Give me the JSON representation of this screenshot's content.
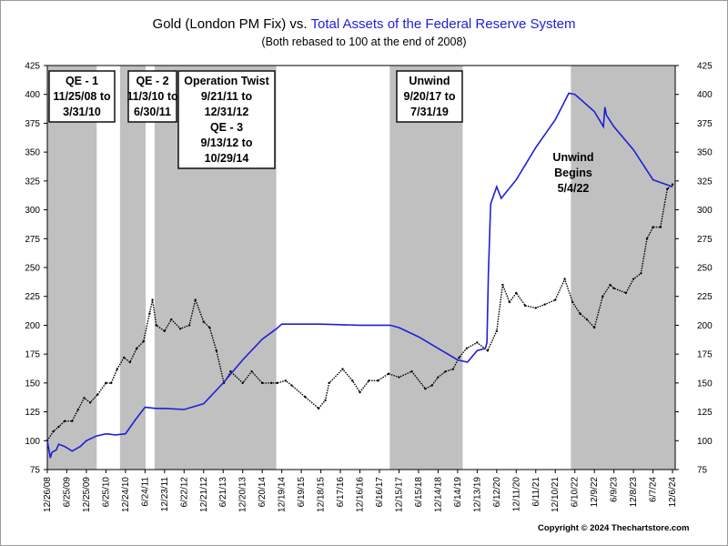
{
  "chart_data": {
    "type": "line",
    "title_part1": "Gold (London PM Fix) vs. ",
    "title_part2": "Total Assets of the Federal Reserve System",
    "subtitle": "(Both rebased to 100 at the end of 2008)",
    "xlabel": "",
    "ylabel": "",
    "ylim": [
      75,
      425
    ],
    "yticks": [
      75,
      100,
      125,
      150,
      175,
      200,
      225,
      250,
      275,
      300,
      325,
      350,
      375,
      400,
      425
    ],
    "xlim": [
      "2008-12-26",
      "2024-12-31"
    ],
    "xticks": [
      {
        "date": "2008-12-26",
        "label": "12/26/08"
      },
      {
        "date": "2009-06-25",
        "label": "6/25/09"
      },
      {
        "date": "2009-12-25",
        "label": "12/25/09"
      },
      {
        "date": "2010-06-25",
        "label": "6/25/10"
      },
      {
        "date": "2010-12-24",
        "label": "12/24/10"
      },
      {
        "date": "2011-06-24",
        "label": "6/24/11"
      },
      {
        "date": "2011-12-23",
        "label": "12/23/11"
      },
      {
        "date": "2012-06-22",
        "label": "6/22/12"
      },
      {
        "date": "2012-12-21",
        "label": "12/21/12"
      },
      {
        "date": "2013-06-21",
        "label": "6/21/13"
      },
      {
        "date": "2013-12-20",
        "label": "12/20/13"
      },
      {
        "date": "2014-06-20",
        "label": "6/20/14"
      },
      {
        "date": "2014-12-19",
        "label": "12/19/14"
      },
      {
        "date": "2015-06-19",
        "label": "6/19/15"
      },
      {
        "date": "2015-12-18",
        "label": "12/18/15"
      },
      {
        "date": "2016-06-17",
        "label": "6/17/16"
      },
      {
        "date": "2016-12-16",
        "label": "12/16/16"
      },
      {
        "date": "2017-06-16",
        "label": "6/16/17"
      },
      {
        "date": "2017-12-15",
        "label": "12/15/17"
      },
      {
        "date": "2018-06-15",
        "label": "6/15/18"
      },
      {
        "date": "2018-12-14",
        "label": "12/14/18"
      },
      {
        "date": "2019-06-14",
        "label": "6/14/19"
      },
      {
        "date": "2019-12-13",
        "label": "12/13/19"
      },
      {
        "date": "2020-06-12",
        "label": "6/12/20"
      },
      {
        "date": "2020-12-11",
        "label": "12/11/20"
      },
      {
        "date": "2021-06-11",
        "label": "6/11/21"
      },
      {
        "date": "2021-12-10",
        "label": "12/10/21"
      },
      {
        "date": "2022-06-10",
        "label": "6/10/22"
      },
      {
        "date": "2022-12-09",
        "label": "12/9/22"
      },
      {
        "date": "2023-06-09",
        "label": "6/9/23"
      },
      {
        "date": "2023-12-08",
        "label": "12/8/23"
      },
      {
        "date": "2024-06-07",
        "label": "6/7/24"
      },
      {
        "date": "2024-12-06",
        "label": "12/6/24"
      }
    ],
    "grid": false,
    "shaded_periods": [
      {
        "start": "2008-11-25",
        "end": "2010-03-31"
      },
      {
        "start": "2010-11-03",
        "end": "2011-06-30"
      },
      {
        "start": "2011-09-21",
        "end": "2014-10-29"
      },
      {
        "start": "2017-09-20",
        "end": "2019-07-31"
      },
      {
        "start": "2022-05-04",
        "end": "2024-12-31"
      }
    ],
    "annotations": [
      {
        "lines": [
          "QE - 1",
          "11/25/08 to",
          "3/31/10"
        ],
        "boxed": true
      },
      {
        "lines": [
          "QE - 2",
          "11/3/10 to",
          "6/30/11"
        ],
        "boxed": true
      },
      {
        "lines": [
          "Operation Twist",
          "9/21/11 to",
          "12/31/12",
          "QE - 3",
          "9/13/12 to",
          "10/29/14"
        ],
        "boxed": true
      },
      {
        "lines": [
          "Unwind",
          "9/20/17 to",
          "7/31/19"
        ],
        "boxed": true
      },
      {
        "lines": [
          "Unwind",
          "Begins",
          "5/4/22"
        ],
        "boxed": false
      }
    ],
    "series": [
      {
        "color": "#000000",
        "style": "dotted-line",
        "x": [
          "2008-12-26",
          "2009-02-20",
          "2009-04-10",
          "2009-06-05",
          "2009-08-14",
          "2009-10-09",
          "2009-12-04",
          "2010-01-29",
          "2010-04-09",
          "2010-06-25",
          "2010-08-13",
          "2010-10-08",
          "2010-12-10",
          "2011-02-04",
          "2011-04-08",
          "2011-06-10",
          "2011-08-05",
          "2011-09-02",
          "2011-10-07",
          "2011-12-23",
          "2012-02-24",
          "2012-05-18",
          "2012-08-10",
          "2012-10-05",
          "2012-12-21",
          "2013-02-15",
          "2013-04-19",
          "2013-06-28",
          "2013-08-30",
          "2013-12-20",
          "2014-03-14",
          "2014-06-20",
          "2014-09-12",
          "2014-11-07",
          "2015-01-23",
          "2015-03-20",
          "2015-07-24",
          "2015-11-27",
          "2016-01-29",
          "2016-03-04",
          "2016-07-08",
          "2016-10-07",
          "2016-12-16",
          "2017-03-10",
          "2017-06-02",
          "2017-09-08",
          "2017-12-15",
          "2018-04-13",
          "2018-08-17",
          "2018-10-19",
          "2018-12-14",
          "2019-02-22",
          "2019-05-03",
          "2019-06-28",
          "2019-09-06",
          "2019-12-13",
          "2020-03-20",
          "2020-06-12",
          "2020-08-07",
          "2020-10-09",
          "2020-12-11",
          "2021-03-05",
          "2021-06-11",
          "2021-09-03",
          "2021-12-10",
          "2022-03-08",
          "2022-05-20",
          "2022-07-29",
          "2022-09-30",
          "2022-12-09",
          "2023-02-24",
          "2023-05-05",
          "2023-06-09",
          "2023-09-29",
          "2023-12-08",
          "2024-02-16",
          "2024-04-12",
          "2024-06-07",
          "2024-08-16",
          "2024-10-18",
          "2024-12-06"
        ],
        "values": [
          100,
          108,
          112,
          117,
          117,
          127,
          137,
          133,
          140,
          150,
          150,
          162,
          172,
          168,
          180,
          186,
          210,
          222,
          200,
          195,
          205,
          197,
          200,
          222,
          203,
          198,
          178,
          150,
          160,
          150,
          160,
          150,
          150,
          150,
          152,
          148,
          138,
          128,
          135,
          150,
          162,
          152,
          142,
          152,
          152,
          158,
          155,
          160,
          145,
          148,
          155,
          160,
          162,
          172,
          180,
          185,
          178,
          195,
          235,
          220,
          228,
          217,
          215,
          218,
          222,
          240,
          220,
          210,
          205,
          198,
          225,
          235,
          232,
          228,
          240,
          245,
          275,
          285,
          285,
          318,
          322
        ]
      },
      {
        "color": "#1f1fd6",
        "style": "line",
        "x": [
          "2008-12-26",
          "2009-01-23",
          "2009-02-06",
          "2009-03-20",
          "2009-04-10",
          "2009-06-05",
          "2009-08-14",
          "2009-10-30",
          "2009-12-25",
          "2010-03-26",
          "2010-06-25",
          "2010-09-24",
          "2010-12-24",
          "2011-03-25",
          "2011-06-24",
          "2011-09-30",
          "2011-12-23",
          "2012-06-22",
          "2012-12-21",
          "2013-06-21",
          "2013-12-20",
          "2014-06-20",
          "2014-10-31",
          "2014-12-19",
          "2015-12-18",
          "2016-12-16",
          "2017-09-22",
          "2017-12-15",
          "2018-06-15",
          "2018-12-14",
          "2019-06-14",
          "2019-09-13",
          "2019-12-13",
          "2020-02-28",
          "2020-03-13",
          "2020-03-27",
          "2020-04-17",
          "2020-06-12",
          "2020-07-24",
          "2020-12-11",
          "2021-06-11",
          "2021-12-10",
          "2022-04-15",
          "2022-06-10",
          "2022-12-09",
          "2023-03-03",
          "2023-03-17",
          "2023-03-31",
          "2023-06-09",
          "2023-12-08",
          "2024-06-07",
          "2024-12-06"
        ],
        "values": [
          100,
          85,
          90,
          92,
          97,
          95,
          91,
          95,
          100,
          104,
          106,
          105,
          106,
          118,
          129,
          128,
          128,
          127,
          132,
          150,
          170,
          188,
          197,
          201,
          201,
          200,
          200,
          198,
          190,
          180,
          170,
          168,
          178,
          180,
          185,
          245,
          305,
          320,
          310,
          326,
          354,
          378,
          401,
          400,
          385,
          372,
          389,
          382,
          372,
          352,
          326,
          320
        ]
      }
    ]
  },
  "copyright": "Copyright © 2024 Thechartstore.com"
}
